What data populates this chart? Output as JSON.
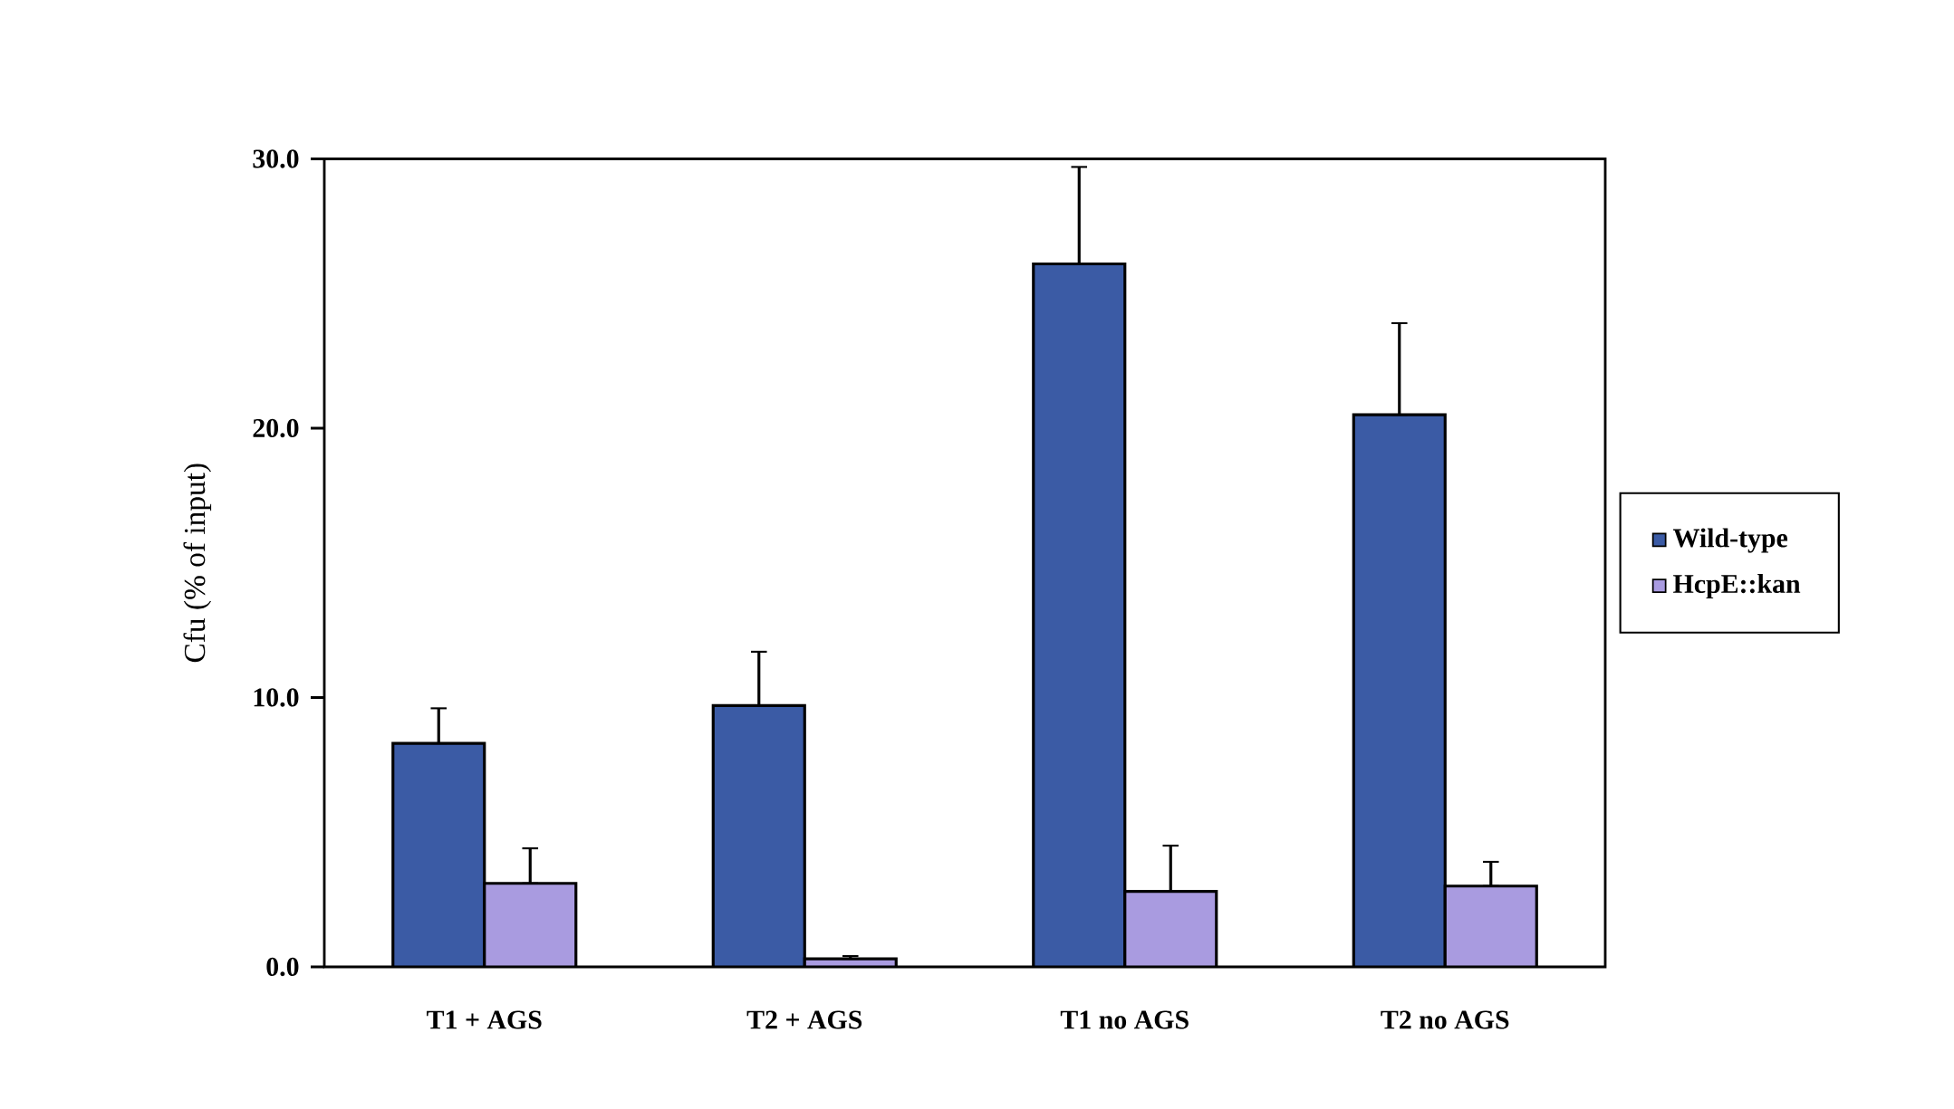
{
  "chart_data": {
    "type": "bar",
    "ylabel": "Cfu (% of input)",
    "categories": [
      "T1 + AGS",
      "T2 + AGS",
      "T1 no AGS",
      "T2 no AGS"
    ],
    "series": [
      {
        "name": "Wild-type",
        "color": "#3b5ba5",
        "values": [
          8.3,
          9.7,
          26.1,
          20.5
        ],
        "errors": [
          [
            8.3,
            9.6
          ],
          [
            9.7,
            11.7
          ],
          [
            26.1,
            29.7
          ],
          [
            20.5,
            23.9
          ]
        ]
      },
      {
        "name": "HcpE::kan",
        "color": "#a99be0",
        "values": [
          3.1,
          0.3,
          2.8,
          3.0
        ],
        "errors": [
          [
            3.1,
            4.4
          ],
          [
            0.3,
            0.4
          ],
          [
            2.8,
            4.5
          ],
          [
            3.0,
            3.9
          ]
        ]
      }
    ],
    "ylim": [
      0,
      30
    ],
    "yticks": [
      {
        "value": 0,
        "label": "0.0"
      },
      {
        "value": 10,
        "label": "10.0"
      },
      {
        "value": 20,
        "label": "20.0"
      },
      {
        "value": 30,
        "label": "30.0"
      }
    ],
    "grid": false,
    "legend": "right"
  }
}
